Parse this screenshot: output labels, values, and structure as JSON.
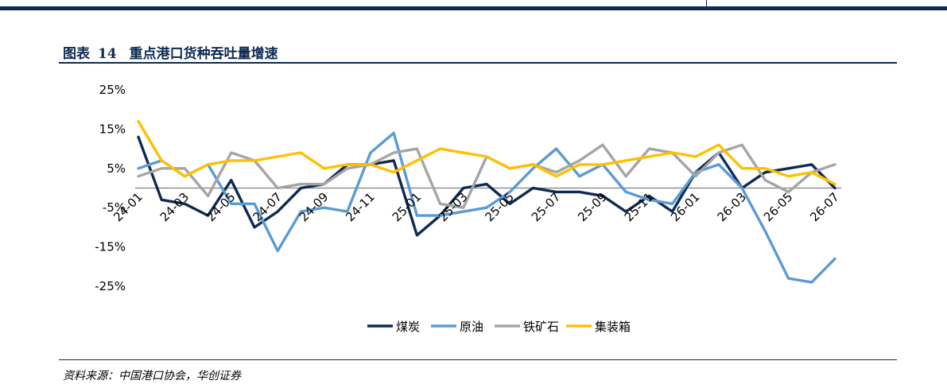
{
  "figure": {
    "label": "图表",
    "number": "14",
    "title": "重点港口货种吞吐量增速"
  },
  "source": "资料来源：中国港口协会，华创证券",
  "chart_data": {
    "type": "line",
    "title": "重点港口货种吞吐量增速",
    "xlabel": "",
    "ylabel": "",
    "ylim": [
      -25,
      25
    ],
    "yticks": [
      25,
      15,
      5,
      -5,
      -15,
      -25
    ],
    "ytick_labels": [
      "25%",
      "15%",
      "5%",
      "-5%",
      "-15%",
      "-25%"
    ],
    "x": [
      "24-01",
      "24-02",
      "24-03",
      "24-04",
      "24-05",
      "24-06",
      "24-07",
      "24-08",
      "24-09",
      "24-10",
      "24-11",
      "24-12",
      "25-01",
      "25-02",
      "25-03",
      "25-04",
      "25-05",
      "25-06",
      "25-07",
      "25-08",
      "25-09",
      "25-10",
      "25-11",
      "25-12",
      "26-01",
      "26-02",
      "26-03",
      "26-04",
      "26-05",
      "26-06",
      "26-07"
    ],
    "x_tick_labels": [
      "24-01",
      "24-03",
      "24-05",
      "24-07",
      "24-09",
      "24-11",
      "25-01",
      "25-03",
      "25-05",
      "25-07",
      "25-09",
      "25-11",
      "26-01",
      "26-03",
      "26-05",
      "26-07"
    ],
    "grid": false,
    "legend_position": "bottom-center",
    "series": [
      {
        "name": "煤炭",
        "color": "#0e2a52",
        "values": [
          13,
          -3,
          -4,
          -7,
          2,
          -10,
          -6,
          0,
          1,
          6,
          6,
          7,
          -12,
          -7,
          0,
          1,
          -4,
          0,
          -1,
          -1,
          -2,
          -6,
          -2,
          -6,
          4,
          9,
          0,
          4,
          5,
          6,
          0
        ]
      },
      {
        "name": "原油",
        "color": "#5b9bd5",
        "values": [
          5,
          7,
          3,
          6,
          -4,
          -4,
          -16,
          -6,
          -5,
          -6,
          9,
          14,
          -7,
          -7,
          -6,
          -5,
          -1,
          5,
          10,
          3,
          6,
          -1,
          -3,
          -4,
          4,
          6,
          0,
          -11,
          -23,
          -24,
          -18
        ]
      },
      {
        "name": "铁矿石",
        "color": "#a5a5a5",
        "values": [
          3,
          5,
          5,
          -2,
          9,
          7,
          0,
          1,
          1,
          5,
          6,
          9,
          10,
          -4,
          -5,
          8,
          5,
          6,
          4,
          7,
          11,
          3,
          10,
          9,
          3,
          9,
          11,
          2,
          -1,
          4,
          6
        ]
      },
      {
        "name": "集装箱",
        "color": "#ffc000",
        "values": [
          17,
          7,
          3,
          6,
          7,
          7,
          8,
          9,
          5,
          6,
          6,
          4,
          7,
          10,
          9,
          8,
          5,
          6,
          3,
          6,
          6,
          7,
          8,
          9,
          8,
          11,
          5,
          5,
          3,
          4,
          1
        ]
      }
    ]
  }
}
